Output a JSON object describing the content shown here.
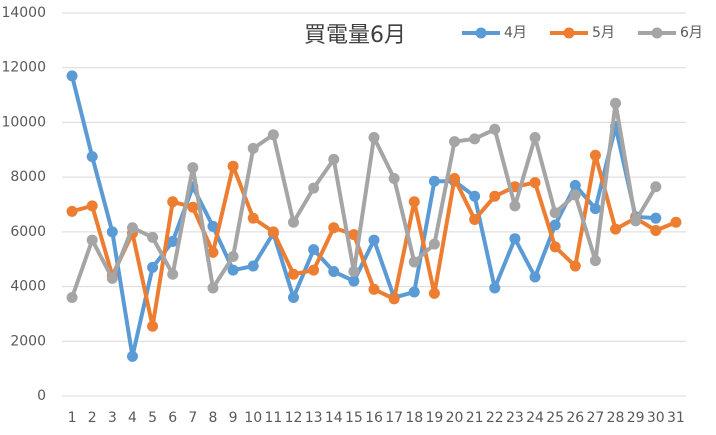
{
  "chart_data": {
    "type": "line",
    "title": "買電量6月",
    "categories": [
      "1",
      "2",
      "3",
      "4",
      "5",
      "6",
      "7",
      "8",
      "9",
      "10",
      "11",
      "12",
      "13",
      "14",
      "15",
      "16",
      "17",
      "18",
      "19",
      "20",
      "21",
      "22",
      "23",
      "24",
      "25",
      "26",
      "27",
      "28",
      "29",
      "30",
      "31"
    ],
    "series": [
      {
        "name": "4月",
        "color": "#5b9bd5",
        "values": [
          11700,
          8750,
          6000,
          1450,
          4700,
          5650,
          7650,
          6200,
          4600,
          4750,
          5950,
          3600,
          5350,
          4550,
          4200,
          5700,
          3600,
          3800,
          7850,
          7850,
          7300,
          3950,
          5750,
          4350,
          6250,
          7700,
          6850,
          9850,
          6550,
          6500,
          null
        ]
      },
      {
        "name": "5月",
        "color": "#ed7d31",
        "values": [
          6750,
          6950,
          4400,
          5950,
          2550,
          7100,
          6900,
          5250,
          8400,
          6500,
          6000,
          4450,
          4600,
          6150,
          5900,
          3900,
          3550,
          7100,
          3750,
          7950,
          6450,
          7300,
          7650,
          7800,
          5450,
          4750,
          8800,
          6100,
          6500,
          6050,
          6350
        ]
      },
      {
        "name": "6月",
        "color": "#a5a5a5",
        "values": [
          3600,
          5700,
          4300,
          6150,
          5800,
          4450,
          8350,
          3950,
          5100,
          9050,
          9550,
          6350,
          7600,
          8650,
          4550,
          9450,
          7950,
          4900,
          5550,
          9300,
          9400,
          9750,
          6950,
          9450,
          6700,
          7350,
          4950,
          10700,
          6400,
          7650,
          null
        ]
      }
    ],
    "ylim": [
      0,
      14000
    ],
    "yticks": [
      0,
      2000,
      4000,
      6000,
      8000,
      10000,
      12000,
      14000
    ],
    "grid": true,
    "legend": "top-right"
  }
}
